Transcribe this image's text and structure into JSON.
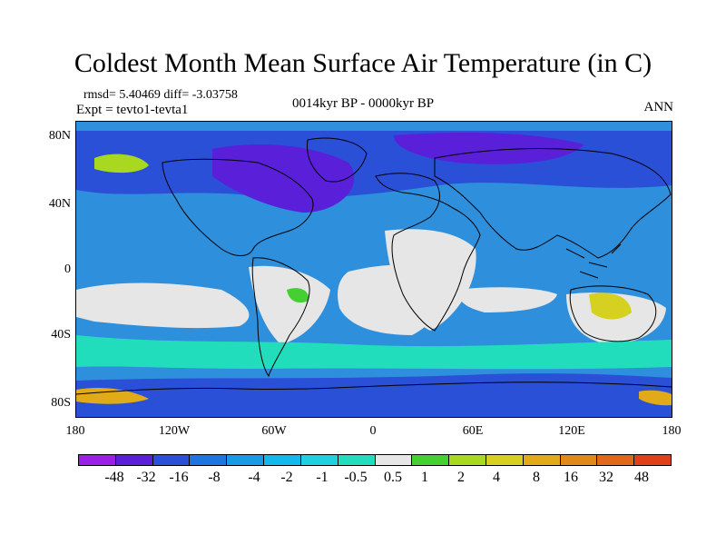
{
  "title": "Coldest Month Mean Surface Air Temperature (in C)",
  "stats_line": "rmsd= 5.40469 diff= -3.03758",
  "expt_line": "Expt = tevto1-tevta1",
  "period": "0014kyr BP - 0000kyr BP",
  "season": "ANN",
  "y_axis_labels": [
    "80N",
    "40N",
    "0",
    "40S",
    "80S"
  ],
  "x_axis_labels": [
    "180",
    "120W",
    "60W",
    "0",
    "60E",
    "120E",
    "180"
  ],
  "colorbar": {
    "colors": [
      "#9a20e8",
      "#5a1fd8",
      "#2a50d8",
      "#1e74e0",
      "#189ae6",
      "#13b8ec",
      "#1ed0e0",
      "#22ddbb",
      "#e6e6e6",
      "#44d030",
      "#a8d820",
      "#d6d020",
      "#e0aa18",
      "#e08818",
      "#e06818",
      "#e04018"
    ],
    "labels": [
      "-48",
      "-32",
      "-16",
      "-8",
      "-4",
      "-2",
      "-1",
      "-0.5",
      "0.5",
      "1",
      "2",
      "4",
      "8",
      "16",
      "32",
      "48"
    ]
  },
  "map_colors": {
    "ocean_base": "#2e8fdc",
    "polar_dark": "#2a50d8",
    "polar_darkest": "#5a1fd8",
    "teal": "#1ed0e0",
    "aqua": "#22ddbb",
    "neutral": "#e6e6e6",
    "green": "#44d030",
    "lime": "#a8d820",
    "yellow": "#d6d020",
    "orange": "#e0aa18",
    "coast": "#000000"
  }
}
